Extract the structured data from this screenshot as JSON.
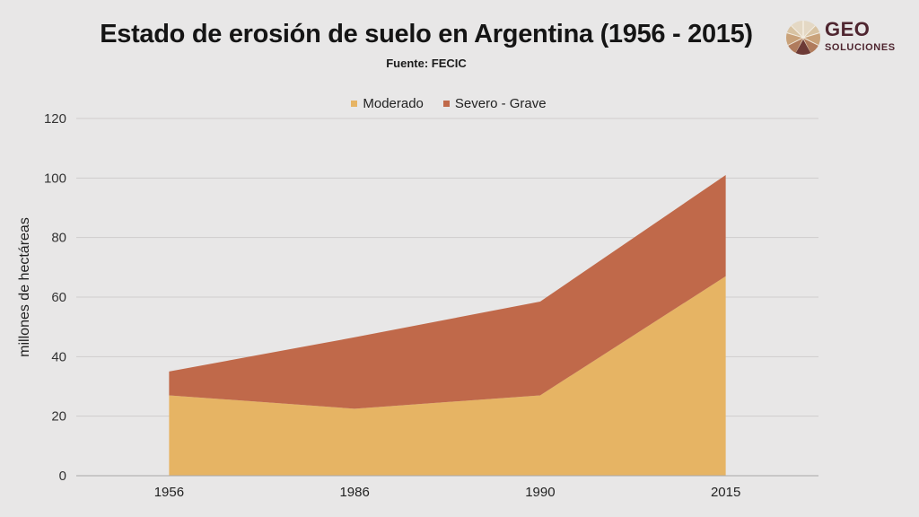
{
  "header": {
    "title": "Estado de erosión de suelo en Argentina (1956 - 2015)",
    "subtitle": "Fuente: FECIC"
  },
  "logo": {
    "name": "GEO",
    "tagline": "SOLUCIONES",
    "icon": "geo-soluciones-logo-icon"
  },
  "chart_data": {
    "type": "area",
    "stacked": true,
    "title": "Estado de erosión de suelo en Argentina (1956 - 2015)",
    "subtitle": "Fuente: FECIC",
    "xlabel": "",
    "ylabel": "millones de hectáreas",
    "categories": [
      "1956",
      "1986",
      "1990",
      "2015"
    ],
    "series": [
      {
        "name": "Moderado",
        "color": "#e6b464",
        "values": [
          27,
          22.5,
          27,
          67
        ]
      },
      {
        "name": "Severo - Grave",
        "color": "#c0694a",
        "values": [
          8,
          24,
          31.5,
          34
        ]
      }
    ],
    "ylim": [
      0,
      120
    ],
    "yticks": [
      "0",
      "20",
      "40",
      "60",
      "80",
      "100",
      "120"
    ],
    "grid": true,
    "legend": "top-center"
  }
}
